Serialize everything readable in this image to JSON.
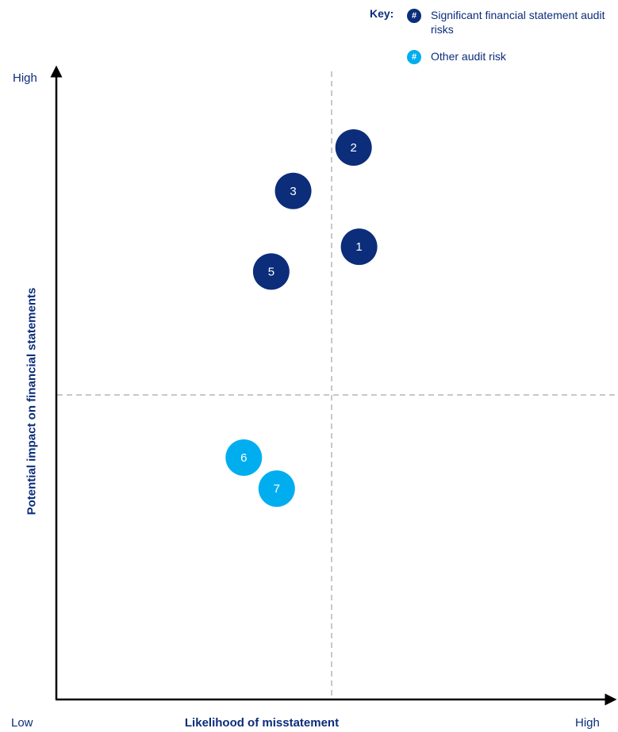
{
  "key": {
    "label": "Key:",
    "symbol": "#",
    "items": [
      {
        "text": "Significant financial statement audit risks",
        "color": "#0b2d7a"
      },
      {
        "text": "Other audit risk",
        "color": "#00aeef"
      }
    ]
  },
  "axis_text": {
    "y_high": "High",
    "x_low": "Low",
    "x_high": "High",
    "x_title": "Likelihood of misstatement",
    "y_title": "Potential impact on financial statements"
  },
  "colors": {
    "significant": "#0b2d7a",
    "other": "#00aeef",
    "axis": "#000000",
    "divider": "#c8c8c8"
  },
  "chart_data": {
    "type": "scatter",
    "xlabel": "Likelihood of misstatement",
    "ylabel": "Potential impact on financial statements",
    "xlim": [
      0,
      1
    ],
    "ylim": [
      0,
      1
    ],
    "divider_x": 0.5,
    "divider_y": 0.5,
    "series": [
      {
        "name": "Significant financial statement audit risks",
        "color": "#0b2d7a",
        "points": [
          {
            "label": "1",
            "x": 0.55,
            "y": 0.73
          },
          {
            "label": "2",
            "x": 0.54,
            "y": 0.89
          },
          {
            "label": "3",
            "x": 0.43,
            "y": 0.82
          },
          {
            "label": "5",
            "x": 0.39,
            "y": 0.69
          }
        ]
      },
      {
        "name": "Other audit risk",
        "color": "#00aeef",
        "points": [
          {
            "label": "6",
            "x": 0.34,
            "y": 0.39
          },
          {
            "label": "7",
            "x": 0.4,
            "y": 0.34
          }
        ]
      }
    ]
  }
}
